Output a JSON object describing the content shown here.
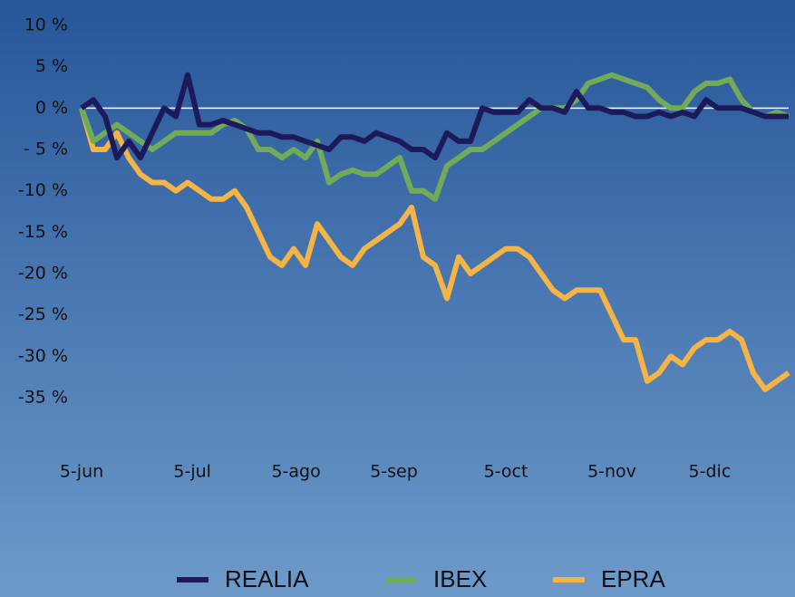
{
  "chart_data": {
    "type": "line",
    "x": [
      0,
      1,
      2,
      3,
      4,
      5,
      6,
      7,
      8,
      9,
      10,
      11,
      12,
      13,
      14,
      15,
      16,
      17,
      18,
      19,
      20,
      21,
      22,
      23,
      24,
      25,
      26,
      27,
      28,
      29,
      30,
      31,
      32,
      33,
      34,
      35,
      36,
      37,
      38,
      39,
      40,
      41,
      42,
      43,
      44,
      45,
      46,
      47,
      48,
      49,
      50,
      51,
      52,
      53,
      54,
      55,
      56,
      57,
      58,
      59,
      60
    ],
    "series": [
      {
        "name": "REALIA",
        "color": "#1d1a5c",
        "values": [
          0,
          1,
          -1,
          -6,
          -4,
          -6,
          -3,
          0,
          -1,
          4,
          -2,
          -2,
          -1.5,
          -2,
          -2.5,
          -3,
          -3,
          -3.5,
          -3.5,
          -4,
          -4.5,
          -5,
          -3.5,
          -3.5,
          -4,
          -3,
          -3.5,
          -4,
          -5,
          -5,
          -6,
          -3,
          -4,
          -4,
          0,
          -0.5,
          -0.5,
          -0.5,
          1,
          0,
          0,
          -0.5,
          2,
          0,
          0,
          -0.5,
          -0.5,
          -1,
          -1,
          -0.5,
          -1,
          -0.5,
          -1,
          1,
          0,
          0,
          0,
          -0.5,
          -1,
          -1,
          -1
        ]
      },
      {
        "name": "IBEX",
        "color": "#72ab58",
        "values": [
          0,
          -4,
          -3,
          -2,
          -3,
          -4,
          -5,
          -4,
          -3,
          -3,
          -3,
          -3,
          -2,
          -1.5,
          -2.5,
          -5,
          -5,
          -6,
          -5,
          -6,
          -4,
          -9,
          -8,
          -7.5,
          -8,
          -8,
          -7,
          -6,
          -10,
          -10,
          -11,
          -7,
          -6,
          -5,
          -5,
          -4,
          -3,
          -2,
          -1,
          0,
          0,
          0,
          1,
          3,
          3.5,
          4,
          3.5,
          3,
          2.5,
          1,
          0,
          0,
          2,
          3,
          3,
          3.5,
          1,
          -0.5,
          -1,
          -0.5,
          -1
        ]
      },
      {
        "name": "EPRA",
        "color": "#f6b444",
        "values": [
          0,
          -5,
          -5,
          -3,
          -6,
          -8,
          -9,
          -9,
          -10,
          -9,
          -10,
          -11,
          -11,
          -10,
          -12,
          -15,
          -18,
          -19,
          -17,
          -19,
          -14,
          -16,
          -18,
          -19,
          -17,
          -16,
          -15,
          -14,
          -12,
          -18,
          -19,
          -23,
          -18,
          -20,
          -19,
          -18,
          -17,
          -17,
          -18,
          -20,
          -22,
          -23,
          -22,
          -22,
          -22,
          -25,
          -28,
          -28,
          -33,
          -32,
          -30,
          -31,
          -29,
          -28,
          -28,
          -27,
          -28,
          -32,
          -34,
          -33,
          -32
        ]
      }
    ],
    "xlim": [
      0,
      60
    ],
    "xticks": [
      {
        "value": 0,
        "label": "5-jun"
      },
      {
        "value": 9.4,
        "label": "5-jul"
      },
      {
        "value": 18.2,
        "label": "5-ago"
      },
      {
        "value": 26.5,
        "label": "5-sep"
      },
      {
        "value": 36,
        "label": "5-oct"
      },
      {
        "value": 45,
        "label": "5-nov"
      },
      {
        "value": 53.3,
        "label": "5-dic"
      }
    ],
    "ylim": [
      -35,
      10
    ],
    "yticks": [
      {
        "value": 10,
        "label": "10 %"
      },
      {
        "value": 5,
        "label": "5 %"
      },
      {
        "value": 0,
        "label": "0 %"
      },
      {
        "value": -5,
        "label": "- 5 %"
      },
      {
        "value": -10,
        "label": "-10 %"
      },
      {
        "value": -15,
        "label": "-15 %"
      },
      {
        "value": -20,
        "label": "-20 %"
      },
      {
        "value": -25,
        "label": "-25 %"
      },
      {
        "value": -30,
        "label": "-30 %"
      },
      {
        "value": -35,
        "label": "-35 %"
      }
    ],
    "legend": "bottom"
  }
}
